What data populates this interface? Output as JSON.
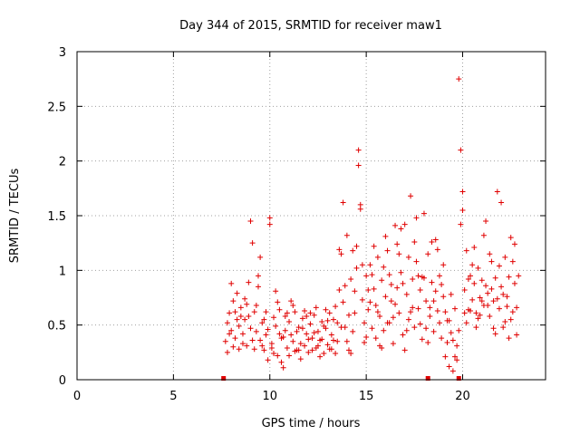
{
  "chart_data": {
    "type": "scatter",
    "title": "Day 344 of 2015, SRMTID for receiver maw1",
    "xlabel": "GPS time / hours",
    "ylabel": "SRMTID / TECUs",
    "xlim": [
      0,
      24.3
    ],
    "ylim": [
      0,
      3
    ],
    "xticks": [
      "0",
      "5",
      "10",
      "15",
      "20"
    ],
    "yticks": [
      "0",
      "0.5",
      "1",
      "1.5",
      "2",
      "2.5",
      "3"
    ],
    "grid": true,
    "marker": "+",
    "color": "#e00000",
    "axis_markers_x": [
      7.6,
      18.2,
      19.8
    ],
    "series": [
      {
        "points": [
          [
            7.7,
            0.35
          ],
          [
            7.8,
            0.52
          ],
          [
            7.9,
            0.61
          ],
          [
            8.0,
            0.45
          ],
          [
            8.1,
            0.72
          ],
          [
            8.2,
            0.38
          ],
          [
            8.3,
            0.55
          ],
          [
            8.4,
            0.28
          ],
          [
            8.5,
            0.66
          ],
          [
            8.6,
            0.42
          ],
          [
            8.7,
            0.74
          ],
          [
            8.8,
            0.31
          ],
          [
            8.9,
            0.58
          ],
          [
            9.0,
            0.47
          ],
          [
            9.1,
            1.25
          ],
          [
            9.2,
            0.62
          ],
          [
            9.3,
            0.44
          ],
          [
            9.4,
            0.85
          ],
          [
            9.5,
            0.36
          ],
          [
            9.6,
            0.52
          ],
          [
            9.7,
            0.27
          ],
          [
            9.8,
            0.41
          ],
          [
            9.9,
            0.18
          ],
          [
            10.0,
            1.42
          ],
          [
            10.1,
            0.33
          ],
          [
            10.2,
            0.57
          ],
          [
            10.3,
            0.49
          ],
          [
            10.4,
            0.22
          ],
          [
            10.5,
            0.64
          ],
          [
            10.6,
            0.38
          ],
          [
            10.7,
            0.11
          ],
          [
            10.8,
            0.45
          ],
          [
            10.9,
            0.29
          ],
          [
            11.0,
            0.53
          ],
          [
            11.1,
            0.41
          ],
          [
            11.2,
            0.35
          ],
          [
            11.3,
            0.62
          ],
          [
            11.4,
            0.27
          ],
          [
            11.5,
            0.48
          ],
          [
            11.6,
            0.33
          ],
          [
            11.7,
            0.56
          ],
          [
            11.8,
            0.31
          ],
          [
            11.9,
            0.42
          ],
          [
            12.0,
            0.25
          ],
          [
            12.1,
            0.51
          ],
          [
            12.2,
            0.38
          ],
          [
            12.3,
            0.59
          ],
          [
            12.4,
            0.29
          ],
          [
            12.5,
            0.44
          ],
          [
            12.6,
            0.36
          ],
          [
            12.7,
            0.53
          ],
          [
            12.8,
            0.24
          ],
          [
            12.9,
            0.47
          ],
          [
            13.0,
            0.32
          ],
          [
            13.1,
            0.61
          ],
          [
            13.2,
            0.28
          ],
          [
            13.3,
            0.55
          ],
          [
            13.4,
            0.67
          ],
          [
            13.5,
            0.35
          ],
          [
            13.6,
            0.82
          ],
          [
            13.7,
            1.15
          ],
          [
            13.8,
            0.71
          ],
          [
            13.9,
            0.48
          ],
          [
            14.0,
            1.32
          ],
          [
            14.1,
            0.59
          ],
          [
            14.2,
            0.92
          ],
          [
            14.3,
            0.44
          ],
          [
            14.4,
            0.81
          ],
          [
            14.5,
            1.22
          ],
          [
            14.6,
            2.1
          ],
          [
            14.7,
            1.6
          ],
          [
            14.8,
            0.73
          ],
          [
            14.9,
            0.52
          ],
          [
            15.0,
            0.95
          ],
          [
            15.1,
            0.64
          ],
          [
            15.2,
            1.05
          ],
          [
            15.3,
            0.47
          ],
          [
            15.4,
            0.83
          ],
          [
            15.5,
            0.38
          ],
          [
            15.6,
            1.12
          ],
          [
            15.7,
            0.58
          ],
          [
            15.8,
            0.91
          ],
          [
            15.9,
            0.45
          ],
          [
            16.0,
            0.76
          ],
          [
            16.1,
            1.18
          ],
          [
            16.2,
            0.52
          ],
          [
            16.3,
            0.87
          ],
          [
            16.4,
            0.33
          ],
          [
            16.5,
            0.69
          ],
          [
            16.6,
            1.24
          ],
          [
            16.7,
            0.61
          ],
          [
            16.8,
            0.98
          ],
          [
            16.9,
            0.41
          ],
          [
            17.0,
            1.42
          ],
          [
            17.1,
            0.78
          ],
          [
            17.2,
            0.55
          ],
          [
            17.3,
            1.68
          ],
          [
            17.4,
            0.92
          ],
          [
            17.5,
            0.48
          ],
          [
            17.6,
            1.08
          ],
          [
            17.7,
            0.65
          ],
          [
            17.8,
            0.82
          ],
          [
            17.9,
            0.37
          ],
          [
            18.0,
            1.52
          ],
          [
            18.1,
            0.72
          ],
          [
            18.2,
            1.15
          ],
          [
            18.3,
            0.58
          ],
          [
            18.4,
            0.89
          ],
          [
            18.5,
            0.44
          ],
          [
            18.6,
            1.28
          ],
          [
            18.7,
            0.63
          ],
          [
            18.8,
            0.95
          ],
          [
            18.9,
            0.38
          ],
          [
            19.0,
            0.76
          ],
          [
            19.1,
            0.21
          ],
          [
            19.2,
            0.54
          ],
          [
            19.3,
            0.12
          ],
          [
            19.4,
            0.43
          ],
          [
            19.5,
            0.08
          ],
          [
            19.6,
            0.65
          ],
          [
            19.7,
            0.31
          ],
          [
            19.8,
            2.75
          ],
          [
            19.9,
            2.1
          ],
          [
            20.0,
            1.55
          ],
          [
            20.1,
            0.82
          ],
          [
            20.2,
            1.18
          ],
          [
            20.3,
            0.64
          ],
          [
            20.4,
            0.95
          ],
          [
            20.5,
            0.73
          ],
          [
            20.6,
            0.88
          ],
          [
            20.7,
            0.61
          ],
          [
            20.8,
            1.02
          ],
          [
            20.9,
            0.75
          ],
          [
            21.0,
            0.91
          ],
          [
            21.1,
            0.68
          ],
          [
            21.2,
            1.45
          ],
          [
            21.3,
            0.79
          ],
          [
            21.4,
            0.58
          ],
          [
            21.5,
            1.08
          ],
          [
            21.6,
            0.72
          ],
          [
            21.7,
            0.93
          ],
          [
            21.8,
            1.72
          ],
          [
            21.9,
            0.65
          ],
          [
            22.0,
            0.85
          ],
          [
            22.1,
            0.48
          ],
          [
            22.2,
            1.12
          ],
          [
            22.3,
            0.76
          ],
          [
            22.4,
            0.94
          ],
          [
            22.5,
            1.3
          ],
          [
            22.6,
            0.62
          ],
          [
            22.7,
            0.88
          ],
          [
            22.8,
            0.41
          ],
          [
            7.8,
            0.25
          ],
          [
            8.0,
            0.88
          ],
          [
            8.2,
            0.62
          ],
          [
            8.4,
            0.49
          ],
          [
            8.6,
            0.33
          ],
          [
            8.8,
            0.69
          ],
          [
            9.0,
            1.45
          ],
          [
            9.2,
            0.28
          ],
          [
            9.4,
            0.95
          ],
          [
            9.6,
            0.31
          ],
          [
            9.8,
            0.62
          ],
          [
            10.0,
            1.48
          ],
          [
            10.2,
            0.24
          ],
          [
            10.4,
            0.71
          ],
          [
            10.6,
            0.16
          ],
          [
            10.8,
            0.58
          ],
          [
            11.0,
            0.22
          ],
          [
            11.2,
            0.68
          ],
          [
            11.4,
            0.44
          ],
          [
            11.6,
            0.19
          ],
          [
            11.8,
            0.63
          ],
          [
            12.0,
            0.37
          ],
          [
            12.2,
            0.27
          ],
          [
            12.4,
            0.66
          ],
          [
            12.6,
            0.21
          ],
          [
            12.8,
            0.49
          ],
          [
            13.0,
            0.54
          ],
          [
            13.2,
            0.41
          ],
          [
            13.4,
            0.24
          ],
          [
            13.6,
            1.19
          ],
          [
            13.8,
            1.62
          ],
          [
            14.0,
            0.35
          ],
          [
            14.2,
            0.24
          ],
          [
            14.4,
            0.61
          ],
          [
            14.6,
            1.96
          ],
          [
            14.8,
            1.05
          ],
          [
            15.0,
            0.39
          ],
          [
            15.2,
            0.71
          ],
          [
            15.4,
            1.22
          ],
          [
            15.6,
            0.62
          ],
          [
            15.8,
            0.29
          ],
          [
            16.0,
            1.31
          ],
          [
            16.2,
            0.96
          ],
          [
            16.4,
            0.57
          ],
          [
            16.6,
            0.84
          ],
          [
            16.8,
            1.38
          ],
          [
            17.0,
            0.27
          ],
          [
            17.2,
            1.12
          ],
          [
            17.4,
            0.66
          ],
          [
            17.6,
            1.48
          ],
          [
            17.8,
            0.51
          ],
          [
            18.0,
            0.93
          ],
          [
            18.2,
            0.34
          ],
          [
            18.4,
            1.26
          ],
          [
            18.6,
            0.81
          ],
          [
            18.8,
            0.52
          ],
          [
            19.0,
            1.05
          ],
          [
            19.2,
            0.34
          ],
          [
            19.4,
            0.78
          ],
          [
            19.6,
            0.21
          ],
          [
            19.8,
            0.45
          ],
          [
            20.0,
            1.72
          ],
          [
            20.2,
            0.52
          ],
          [
            20.4,
            0.63
          ],
          [
            20.6,
            1.21
          ],
          [
            20.8,
            0.56
          ],
          [
            21.0,
            0.72
          ],
          [
            21.2,
            0.86
          ],
          [
            21.4,
            1.15
          ],
          [
            21.6,
            0.47
          ],
          [
            21.8,
            0.74
          ],
          [
            22.0,
            1.62
          ],
          [
            22.2,
            0.53
          ],
          [
            22.4,
            0.38
          ],
          [
            22.6,
            1.08
          ],
          [
            22.8,
            0.66
          ],
          [
            7.9,
            0.42
          ],
          [
            8.3,
            0.79
          ],
          [
            8.7,
            0.55
          ],
          [
            9.1,
            0.36
          ],
          [
            9.5,
            1.12
          ],
          [
            9.9,
            0.46
          ],
          [
            10.3,
            0.81
          ],
          [
            10.7,
            0.39
          ],
          [
            11.1,
            0.72
          ],
          [
            11.5,
            0.27
          ],
          [
            11.9,
            0.58
          ],
          [
            12.3,
            0.43
          ],
          [
            12.7,
            0.37
          ],
          [
            13.1,
            0.28
          ],
          [
            13.5,
            0.52
          ],
          [
            13.9,
            0.86
          ],
          [
            14.3,
            1.18
          ],
          [
            14.7,
            1.56
          ],
          [
            15.1,
            0.82
          ],
          [
            15.5,
            0.68
          ],
          [
            15.9,
            1.03
          ],
          [
            16.3,
            0.72
          ],
          [
            16.7,
            1.15
          ],
          [
            17.1,
            0.45
          ],
          [
            17.5,
            1.26
          ],
          [
            17.9,
            0.94
          ],
          [
            18.3,
            0.66
          ],
          [
            18.7,
            1.19
          ],
          [
            19.1,
            0.62
          ],
          [
            19.5,
            0.36
          ],
          [
            19.9,
            1.42
          ],
          [
            20.3,
            0.92
          ],
          [
            20.7,
            0.48
          ],
          [
            21.1,
            1.32
          ],
          [
            21.5,
            0.83
          ],
          [
            21.9,
            1.04
          ],
          [
            22.3,
            0.67
          ],
          [
            22.7,
            1.24
          ],
          [
            8.1,
            0.3
          ],
          [
            8.5,
            0.58
          ],
          [
            8.9,
            0.89
          ],
          [
            9.3,
            0.68
          ],
          [
            9.7,
            0.55
          ],
          [
            10.1,
            0.29
          ],
          [
            10.5,
            0.42
          ],
          [
            10.9,
            0.61
          ],
          [
            11.3,
            0.26
          ],
          [
            11.7,
            0.47
          ],
          [
            12.1,
            0.61
          ],
          [
            12.5,
            0.31
          ],
          [
            12.9,
            0.64
          ],
          [
            13.3,
            0.36
          ],
          [
            13.7,
            0.48
          ],
          [
            14.1,
            0.27
          ],
          [
            14.5,
            1.02
          ],
          [
            14.9,
            0.34
          ],
          [
            15.3,
            0.96
          ],
          [
            15.7,
            0.31
          ],
          [
            16.1,
            0.52
          ],
          [
            16.5,
            1.41
          ],
          [
            16.9,
            0.88
          ],
          [
            17.3,
            0.62
          ],
          [
            17.7,
            0.95
          ],
          [
            18.1,
            0.47
          ],
          [
            18.5,
            0.72
          ],
          [
            18.9,
            0.87
          ],
          [
            19.3,
            0.54
          ],
          [
            19.7,
            0.18
          ],
          [
            20.1,
            0.61
          ],
          [
            20.5,
            1.05
          ],
          [
            20.9,
            0.59
          ],
          [
            21.3,
            0.68
          ],
          [
            21.7,
            0.42
          ],
          [
            22.1,
            0.78
          ],
          [
            22.5,
            0.55
          ],
          [
            22.9,
            0.95
          ]
        ]
      }
    ]
  }
}
